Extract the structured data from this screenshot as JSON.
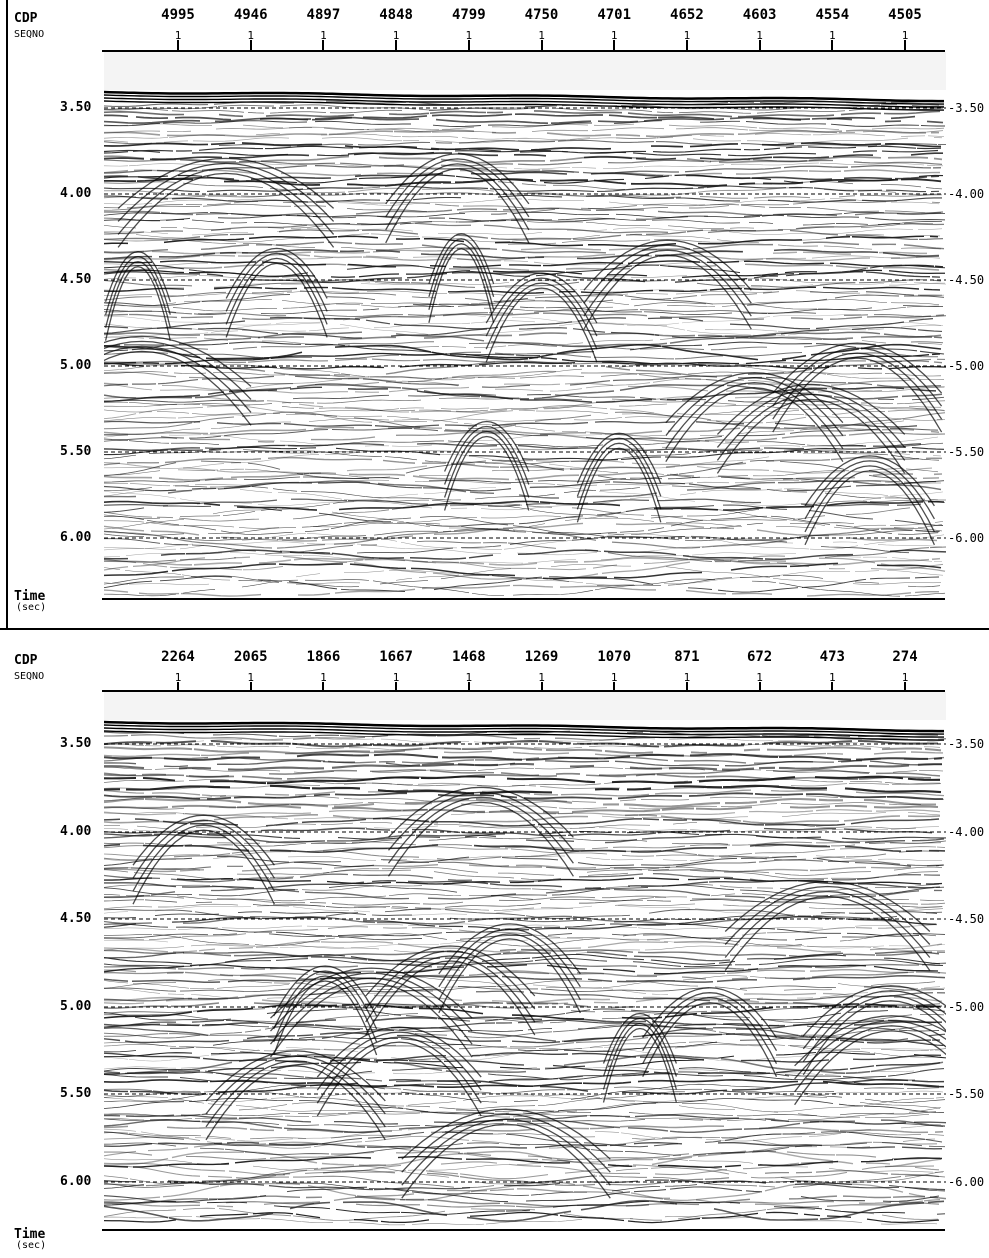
{
  "panels": [
    {
      "id": "top",
      "header_label": "CDP",
      "sub_label": "SEQNO",
      "cdp_values": [
        "4995",
        "4946",
        "4897",
        "4848",
        "4799",
        "4750",
        "4701",
        "4652",
        "4603",
        "4554",
        "4505"
      ],
      "seqno_values": [
        "1",
        "1",
        "1",
        "1",
        "1",
        "1",
        "1",
        "1",
        "1",
        "1",
        "1"
      ],
      "time_ticks": [
        "3.50",
        "4.00",
        "4.50",
        "5.00",
        "5.50",
        "6.00"
      ],
      "time_ticks_right": [
        "3.50",
        "4.00",
        "4.50",
        "5.00",
        "5.50",
        "6.00"
      ],
      "time_label": "Time",
      "time_unit": "(sec)"
    },
    {
      "id": "bottom",
      "header_label": "CDP",
      "sub_label": "SEQNO",
      "cdp_values": [
        "2264",
        "2065",
        "1866",
        "1667",
        "1468",
        "1269",
        "1070",
        "871",
        "672",
        "473",
        "274"
      ],
      "seqno_values": [
        "1",
        "1",
        "1",
        "1",
        "1",
        "1",
        "1",
        "1",
        "1",
        "1",
        "1"
      ],
      "time_ticks": [
        "3.50",
        "4.00",
        "4.50",
        "5.00",
        "5.50",
        "6.00"
      ],
      "time_ticks_right": [
        "3.50",
        "4.00",
        "4.50",
        "5.00",
        "5.50",
        "6.00"
      ],
      "time_label": "Time",
      "time_unit": "(sec)"
    }
  ],
  "colors": {
    "ink": "#000000",
    "background": "#ffffff",
    "seismic": "#1a1a1a"
  }
}
